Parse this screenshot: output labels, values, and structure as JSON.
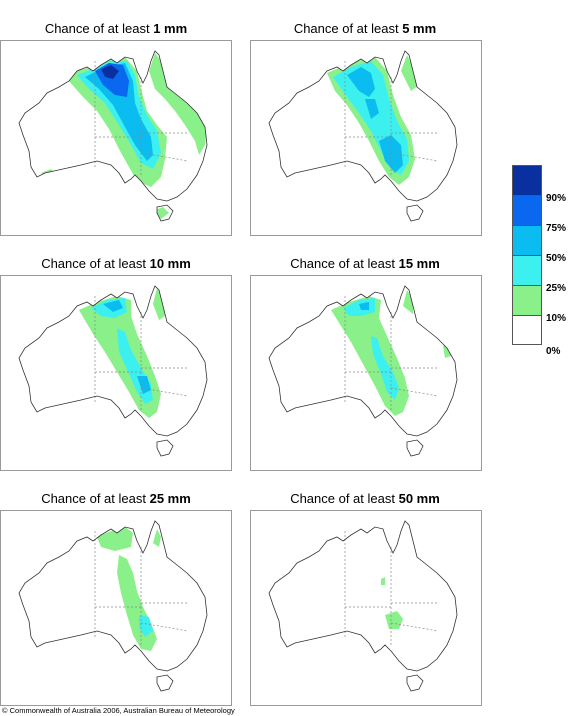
{
  "panels": [
    {
      "prefix": "Chance of at least ",
      "amount": "1 mm"
    },
    {
      "prefix": "Chance of at least ",
      "amount": "5 mm"
    },
    {
      "prefix": "Chance of at least ",
      "amount": "10 mm"
    },
    {
      "prefix": "Chance of at least ",
      "amount": "15 mm"
    },
    {
      "prefix": "Chance of at least ",
      "amount": "25 mm"
    },
    {
      "prefix": "Chance of at least ",
      "amount": "50 mm"
    }
  ],
  "legend": {
    "colors": [
      "#0a2f9e",
      "#0a68f0",
      "#0abcf0",
      "#3cf0f0",
      "#8af08a",
      "#ffffff"
    ],
    "labels": [
      "90%",
      "75%",
      "50%",
      "25%",
      "10%",
      "0%"
    ]
  },
  "footer": {
    "copyright": "© Commonwealth of Australia 2006, Australian Bureau of Meteorology"
  }
}
